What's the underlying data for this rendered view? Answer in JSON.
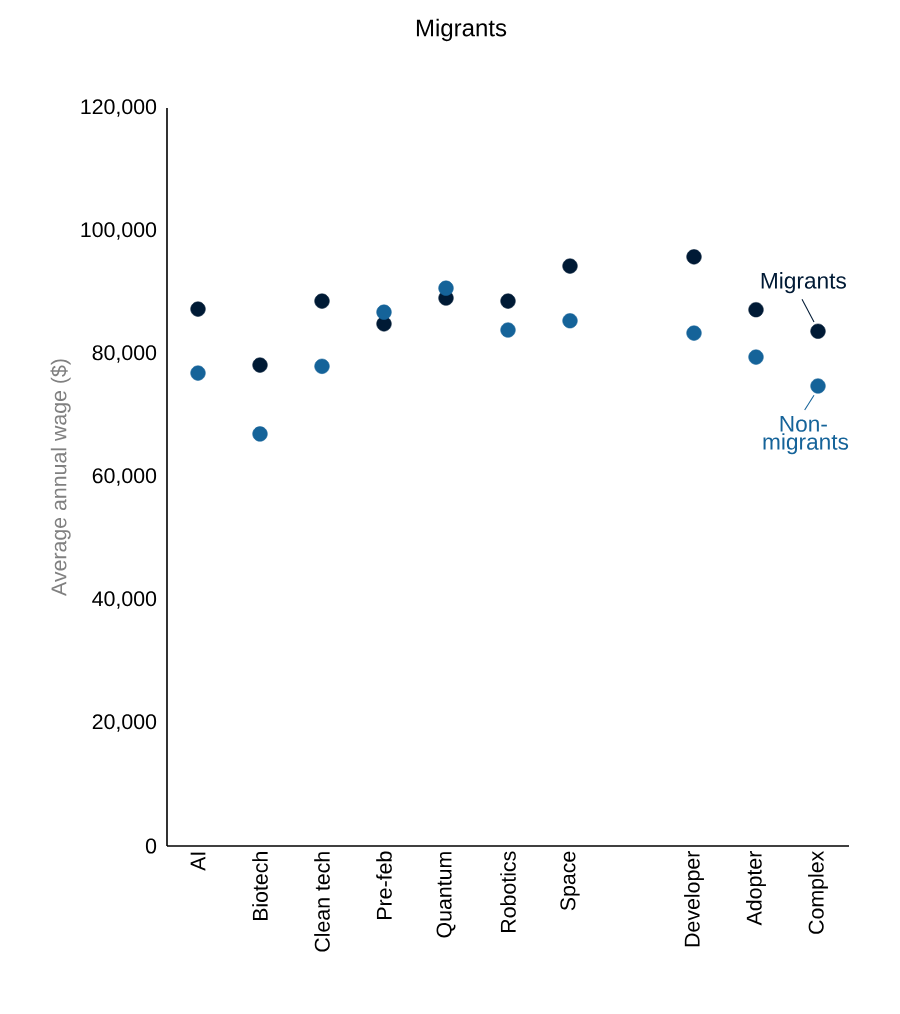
{
  "chart_data": {
    "type": "scatter",
    "title": "Migrants",
    "ylabel": "Average annual wage ($)",
    "categories": [
      "AI",
      "Biotech",
      "Clean tech",
      "Pre-feb",
      "Quantum",
      "Robotics",
      "Space",
      null,
      "Developer",
      "Adopter",
      "Complex"
    ],
    "series": [
      {
        "name": "Migrants",
        "color": "#001a35",
        "values": [
          87300,
          78200,
          88600,
          84900,
          89100,
          88600,
          94300,
          null,
          95800,
          87200,
          83700
        ]
      },
      {
        "name": "Non-migrants",
        "color": "#156399",
        "values": [
          76900,
          67000,
          78000,
          86800,
          90700,
          83900,
          85400,
          null,
          83400,
          79500,
          74800
        ]
      }
    ],
    "ylim": [
      0,
      120000
    ],
    "yticks": [
      0,
      {
        "value": 20000,
        "label": "20,000"
      },
      {
        "value": 40000,
        "label": "40,000"
      },
      {
        "value": 60000,
        "label": "60,000"
      },
      {
        "value": 80000,
        "label": "80,000"
      },
      {
        "value": 100000,
        "label": "100,000"
      },
      {
        "value": 120000,
        "label": "120,000"
      }
    ],
    "marker": "circle",
    "grid": false,
    "legend": "right"
  }
}
